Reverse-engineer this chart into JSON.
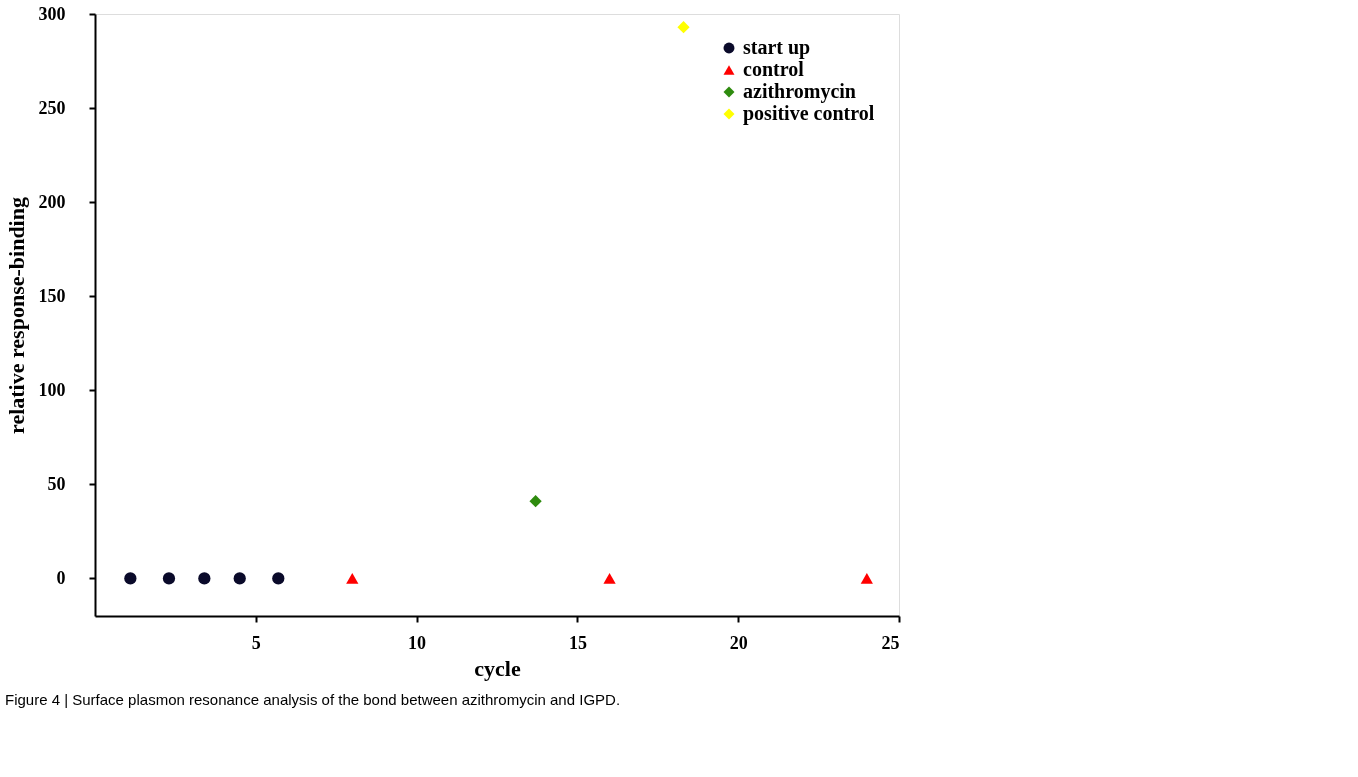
{
  "chart_data": {
    "type": "scatter",
    "xlabel": "cycle",
    "ylabel": "relative response-binding",
    "xlim": [
      0,
      25
    ],
    "xticks": [
      5,
      10,
      15,
      20,
      25
    ],
    "ylim": [
      -20,
      300
    ],
    "yticks": [
      0,
      50,
      100,
      150,
      200,
      250,
      300
    ],
    "grid": false,
    "legend": "top right",
    "series": [
      {
        "name": "start up",
        "color": "#0a0a2a",
        "marker": "circle",
        "x": [
          1.1,
          2.3,
          3.4,
          4.5,
          5.7
        ],
        "values": [
          0,
          0,
          0,
          0,
          0
        ]
      },
      {
        "name": "control",
        "color": "#ff0000",
        "marker": "triangle",
        "x": [
          8.0,
          16.0,
          24.0
        ],
        "values": [
          0,
          0,
          0
        ]
      },
      {
        "name": "azithromycin",
        "color": "#2e8b0e",
        "marker": "diamond",
        "x": [
          13.7
        ],
        "values": [
          41
        ]
      },
      {
        "name": "positive control",
        "color": "#ffff00",
        "marker": "diamond",
        "x": [
          18.3
        ],
        "values": [
          293
        ]
      }
    ],
    "annotations": [
      "Figure 4 | Surface plasmon resonance analysis of the bond between azithromycin and IGPD."
    ]
  }
}
